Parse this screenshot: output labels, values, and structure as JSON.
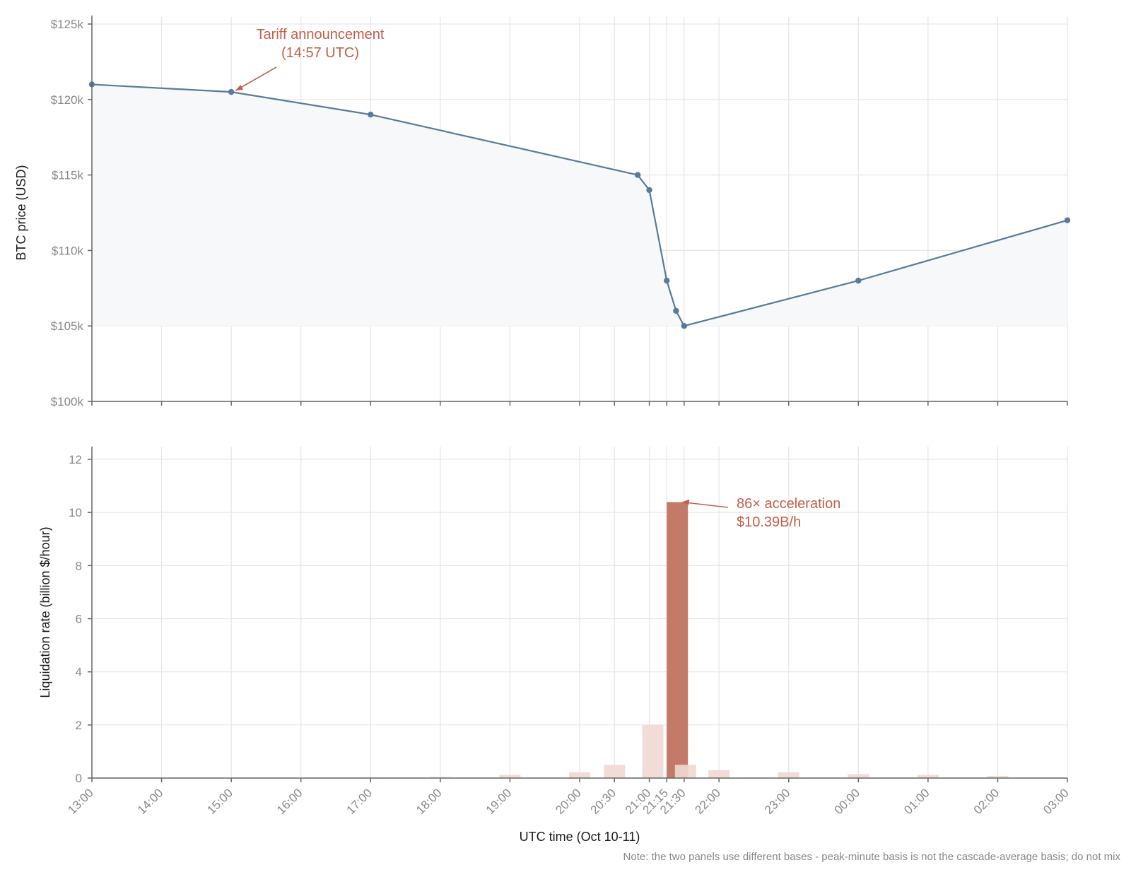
{
  "chart_data": [
    {
      "panel": "top",
      "type": "line",
      "ylabel": "BTC price (USD)",
      "ylim": [
        100000,
        125000
      ],
      "y_ticks": [
        100000,
        105000,
        110000,
        115000,
        120000,
        125000
      ],
      "y_tick_labels": [
        "$100k",
        "$105k",
        "$110k",
        "$115k",
        "$120k",
        "$125k"
      ],
      "grid": true,
      "area_fill": true,
      "series": [
        {
          "x": [
            "13:00",
            "15:00",
            "17:00",
            "20:50",
            "21:00",
            "21:15",
            "21:23",
            "21:30",
            "00:00",
            "03:00"
          ],
          "values": [
            121000,
            120500,
            119000,
            115000,
            114000,
            108000,
            106000,
            105000,
            108000,
            112000
          ]
        }
      ],
      "annotations": [
        {
          "text_lines": [
            "Tariff announcement",
            "(14:57 UTC)"
          ],
          "target_x": "15:00",
          "target_y": 120500
        }
      ]
    },
    {
      "panel": "bottom",
      "type": "bar",
      "ylabel": "Liquidation rate (billion $/hour)",
      "xlabel": "UTC time (Oct 10-11)",
      "ylim": [
        0,
        12.5
      ],
      "y_ticks": [
        0,
        2,
        4,
        6,
        8,
        10,
        12
      ],
      "grid": true,
      "bars": [
        {
          "x": "17:00",
          "value": 0.03
        },
        {
          "x": "18:00",
          "value": 0.04
        },
        {
          "x": "19:00",
          "value": 0.12
        },
        {
          "x": "20:00",
          "value": 0.22
        },
        {
          "x": "20:30",
          "value": 0.5
        },
        {
          "x": "21:00",
          "value": 2.0
        },
        {
          "x": "21:15",
          "value": 10.39,
          "highlight": true
        },
        {
          "x": "21:30",
          "value": 0.5
        },
        {
          "x": "22:00",
          "value": 0.3
        },
        {
          "x": "23:00",
          "value": 0.22
        },
        {
          "x": "00:00",
          "value": 0.15
        },
        {
          "x": "01:00",
          "value": 0.12
        },
        {
          "x": "02:00",
          "value": 0.08
        }
      ],
      "annotations": [
        {
          "text_lines": [
            "86× acceleration",
            "$10.39B/h"
          ],
          "target_x": "21:15",
          "target_y": 10.39
        }
      ]
    }
  ],
  "x_ticks": [
    "13:00",
    "14:00",
    "15:00",
    "16:00",
    "17:00",
    "18:00",
    "19:00",
    "20:00",
    "20:30",
    "21:00",
    "21:15",
    "21:30",
    "22:00",
    "23:00",
    "00:00",
    "01:00",
    "02:00",
    "03:00"
  ],
  "note": "Note: the two panels use different bases - peak-minute basis is not the cascade-average basis; do not mix",
  "colors": {
    "line": "#5a7a99",
    "area": "#f6f8fa",
    "highlight_bar": "#c47a68",
    "faint_bar": "#f0d9d2",
    "annotation": "#c0604a",
    "grid": "#e6e6e6",
    "axis": "#666666"
  }
}
